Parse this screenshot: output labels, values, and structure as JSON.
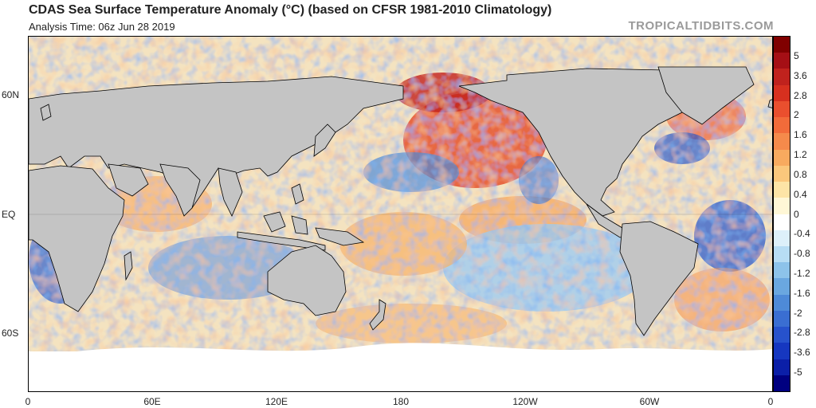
{
  "header": {
    "title": "CDAS Sea Surface Temperature Anomaly (°C) (based on CFSR 1981-2010 Climatology)",
    "analysis_time": "Analysis Time: 06z Jun 28 2019",
    "site": "TROPICALTIDBITS.COM"
  },
  "map": {
    "lat_labels": [
      "60N",
      "EQ",
      "60S"
    ],
    "lon_labels": [
      "0",
      "60E",
      "120E",
      "180",
      "120W",
      "60W",
      "0"
    ],
    "land_color": "#c4c4c4",
    "ice_color": "#ffffff"
  },
  "colorbar": {
    "labels": [
      "5",
      "3.6",
      "2.8",
      "2",
      "1.6",
      "1.2",
      "0.8",
      "0.4",
      "0",
      "-0.4",
      "-0.8",
      "-1.2",
      "-1.6",
      "-2",
      "-2.8",
      "-3.6",
      "-5"
    ],
    "colors": [
      "#800000",
      "#a50f15",
      "#c0221d",
      "#d7301f",
      "#ea4f2e",
      "#f26b3a",
      "#f58a4b",
      "#f8aa5f",
      "#fbc77c",
      "#fde4a6",
      "#fff7d6",
      "#ffffff",
      "#ddf0fa",
      "#b7ddf4",
      "#8dc3ea",
      "#6aa7e0",
      "#4e8ad8",
      "#3a6ed2",
      "#2752cc",
      "#1637c0",
      "#0b1fa8",
      "#000080"
    ]
  }
}
